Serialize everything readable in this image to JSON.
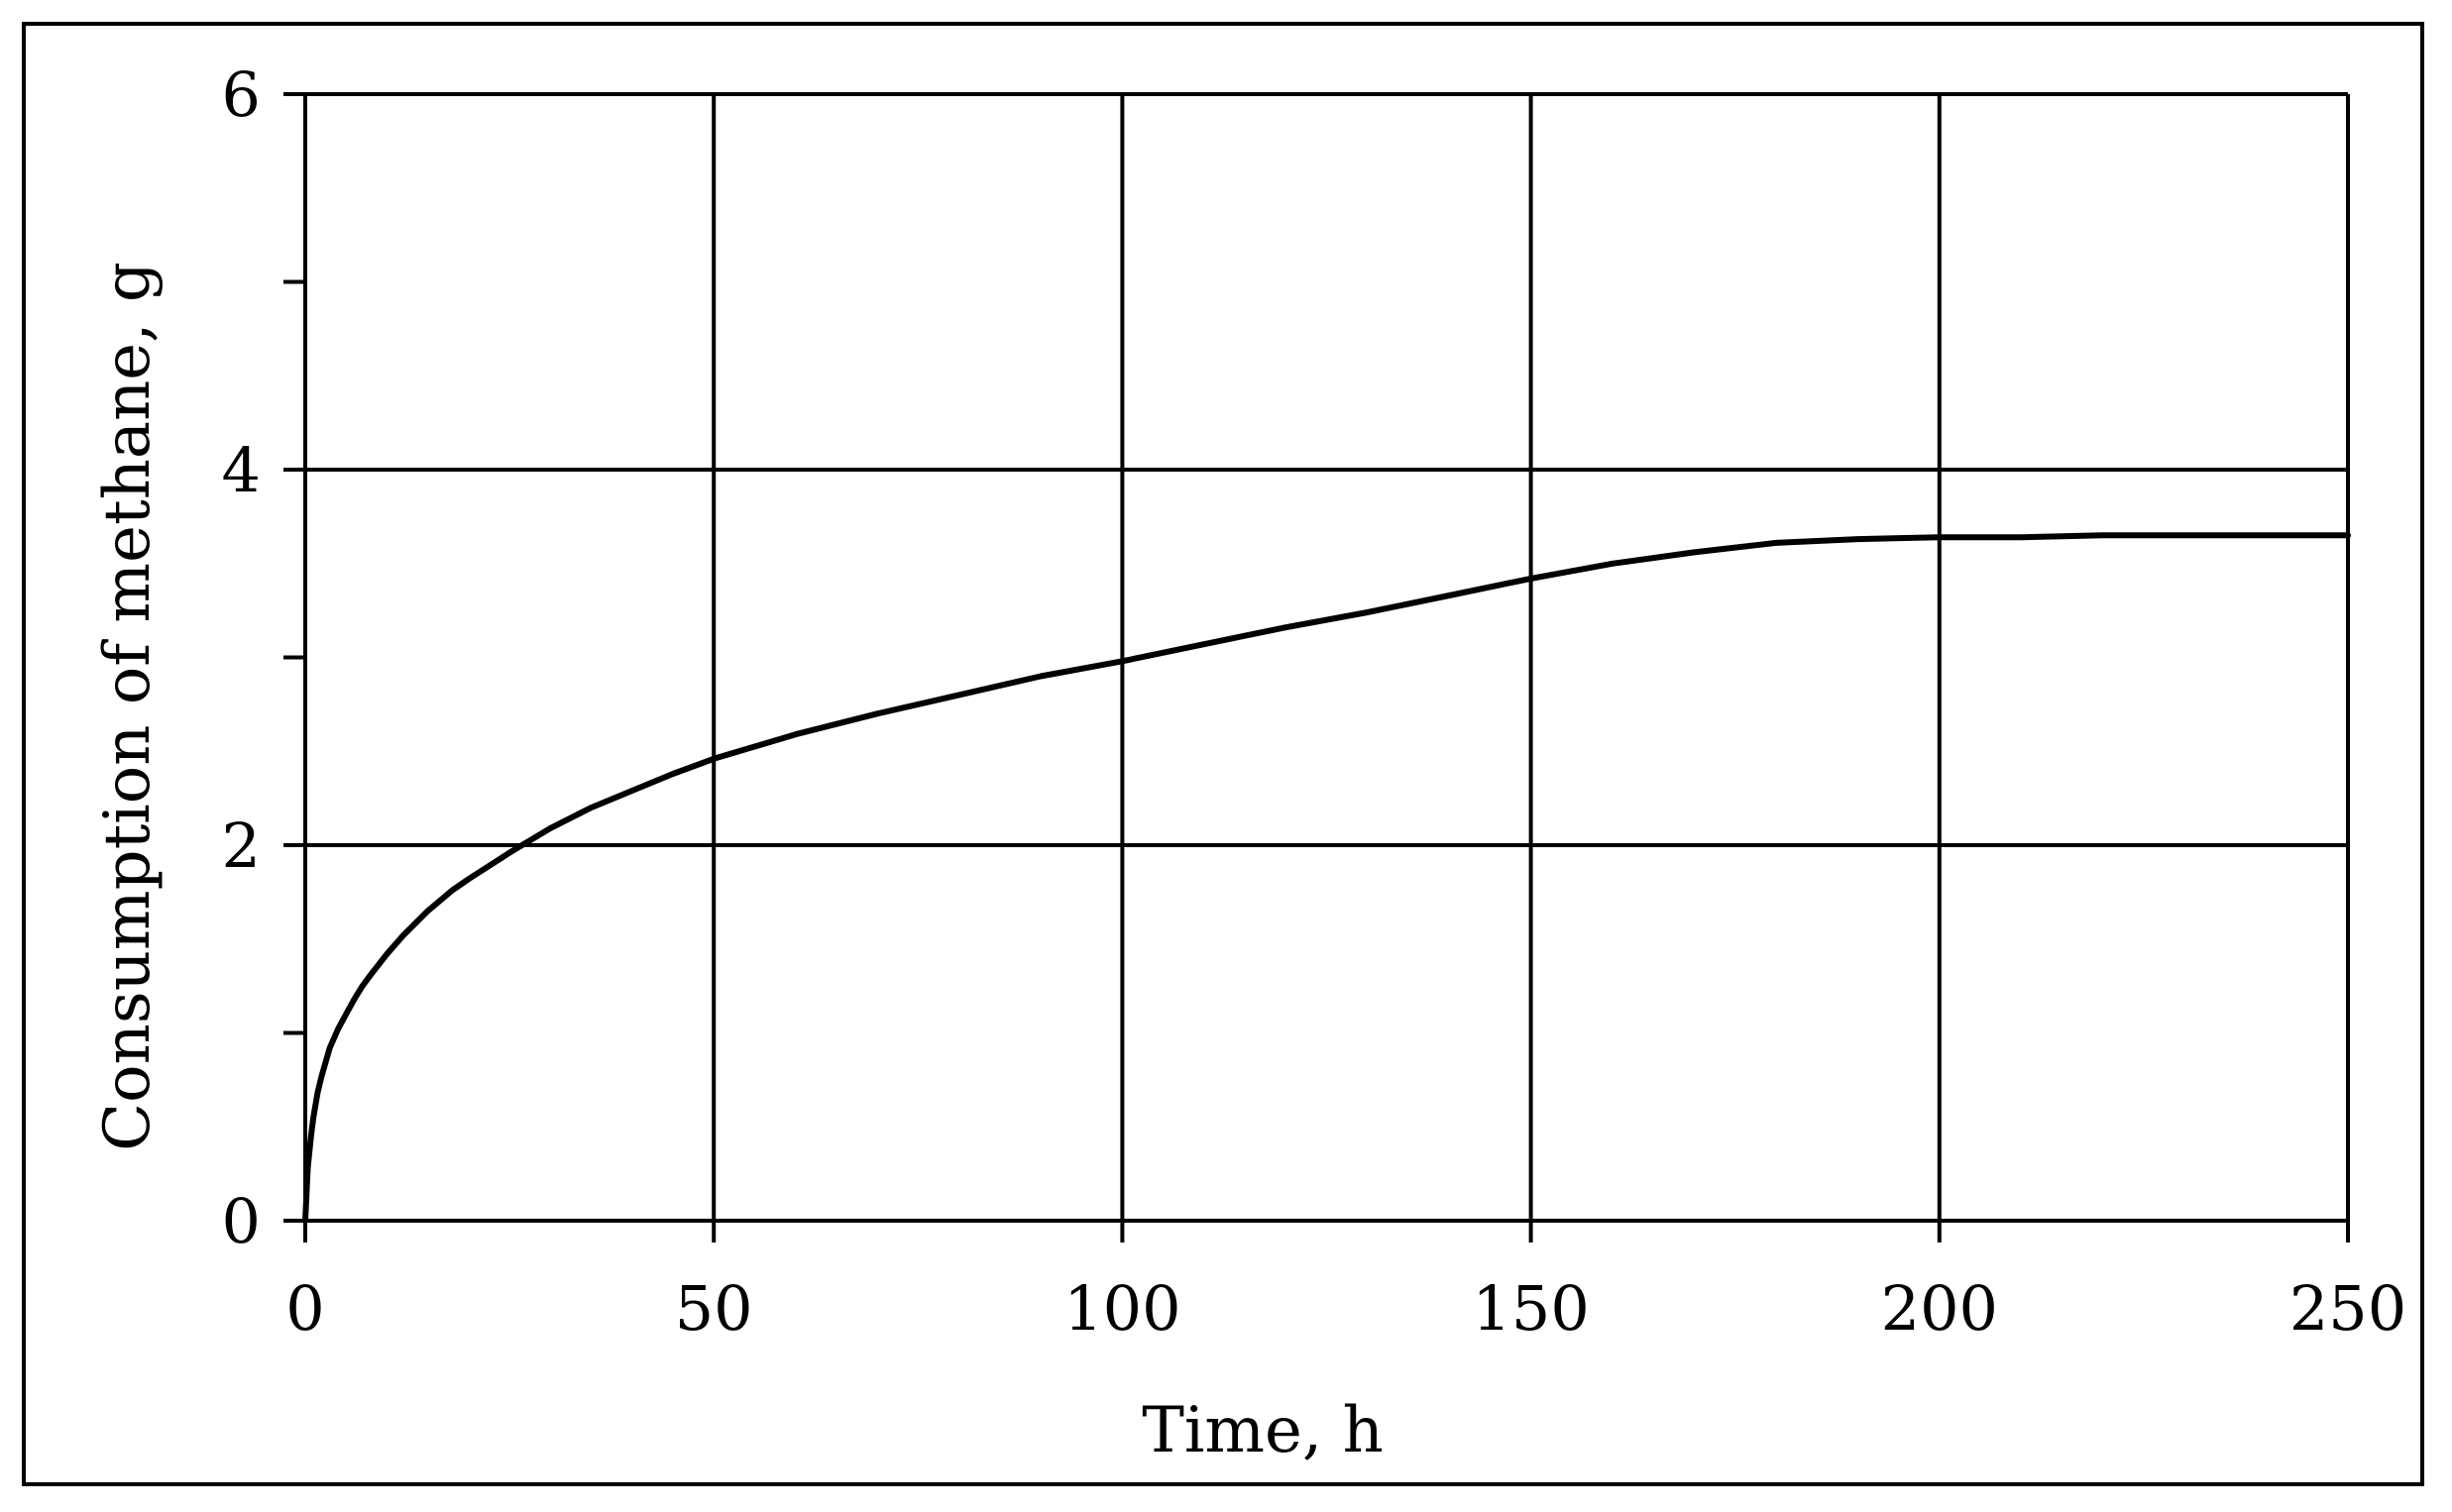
{
  "chart_data": {
    "type": "line",
    "title": "",
    "xlabel": "Time, h",
    "ylabel": "Consumption of methane, g",
    "xlim": [
      0,
      250
    ],
    "ylim": [
      0,
      6
    ],
    "xticks": [
      0,
      50,
      100,
      150,
      200,
      250
    ],
    "yticks": [
      0,
      2,
      4,
      6
    ],
    "yminor_ticks": [
      1,
      3,
      5
    ],
    "grid": true,
    "series": [
      {
        "x": [
          0,
          0.3,
          0.7,
          1,
          1.5,
          2,
          3,
          4,
          5,
          6,
          7,
          8,
          10,
          12,
          15,
          18,
          20,
          25,
          30,
          35,
          40,
          45,
          50,
          60,
          70,
          80,
          90,
          100,
          110,
          120,
          130,
          140,
          150,
          160,
          170,
          180,
          185,
          190,
          200,
          210,
          220,
          230,
          240,
          250
        ],
        "y": [
          0,
          0.28,
          0.45,
          0.55,
          0.68,
          0.77,
          0.92,
          1.02,
          1.1,
          1.18,
          1.25,
          1.31,
          1.42,
          1.52,
          1.65,
          1.76,
          1.82,
          1.96,
          2.09,
          2.2,
          2.29,
          2.38,
          2.46,
          2.59,
          2.7,
          2.8,
          2.9,
          2.98,
          3.07,
          3.16,
          3.24,
          3.33,
          3.42,
          3.5,
          3.56,
          3.61,
          3.62,
          3.63,
          3.64,
          3.64,
          3.65,
          3.65,
          3.65,
          3.65
        ],
        "color": "#000000"
      }
    ]
  }
}
